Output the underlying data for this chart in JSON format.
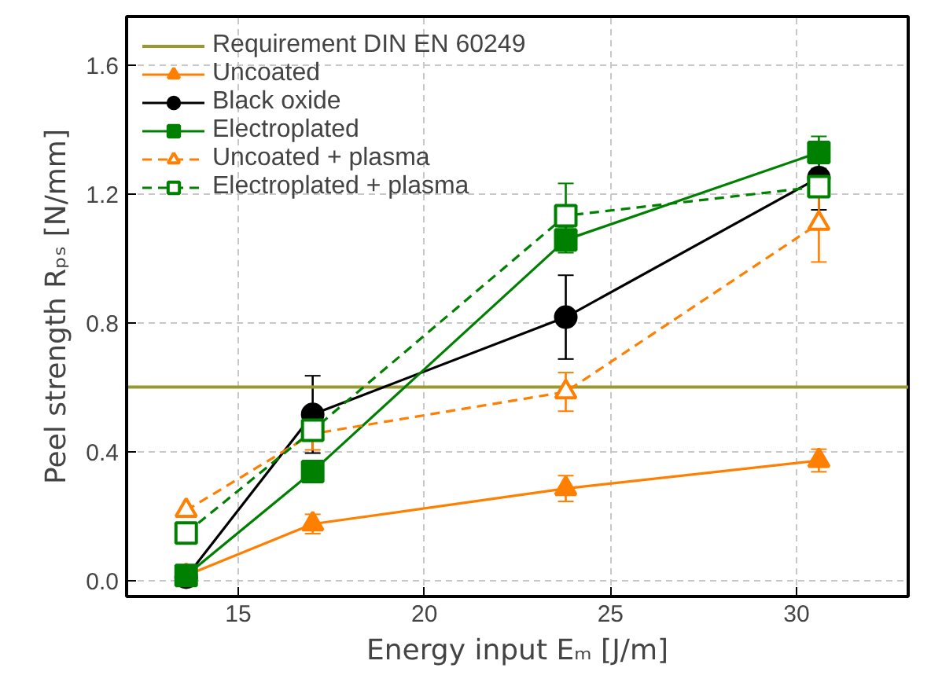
{
  "chart_data": {
    "type": "line",
    "xlabel": "Energy input Eₘ [J/m]",
    "ylabel": "Peel strength Rₚₛ [N/mm]",
    "x": [
      13.6,
      17.0,
      23.8,
      30.6
    ],
    "xlim": [
      12,
      33
    ],
    "ylim": [
      -0.05,
      1.75
    ],
    "xticks": [
      15,
      20,
      25,
      30
    ],
    "yticks": [
      {
        "value": 0,
        "label": "0.0"
      },
      0.4,
      0.8,
      1.2,
      1.6
    ],
    "grid": true,
    "legend": "top left",
    "ref_lines": [
      {
        "axis": "y",
        "value": 0.6,
        "label": "Requirement DIN EN 60249",
        "color": "#999933"
      }
    ],
    "series": [
      {
        "name": "Uncoated",
        "color": "#ff7f00",
        "marker": "triangle",
        "line_style": "solid",
        "values": [
          0.015,
          0.175,
          0.285,
          0.372
        ],
        "errors": [
          null,
          0.03,
          0.04,
          0.035
        ]
      },
      {
        "name": "Black oxide",
        "color": "#000000",
        "marker": "circle",
        "line_style": "solid",
        "values": [
          0.01,
          0.515,
          0.817,
          1.25
        ],
        "errors": [
          null,
          0.12,
          0.13,
          0.1
        ]
      },
      {
        "name": "Electroplated",
        "color": "#008000",
        "marker": "square",
        "line_style": "solid",
        "values": [
          0.015,
          0.338,
          1.057,
          1.328
        ],
        "errors": [
          null,
          null,
          0.04,
          0.05
        ]
      },
      {
        "name": "Uncoated + plasma",
        "color": "#ff7f00",
        "marker": "triangle_open",
        "line_style": "dashed",
        "values": [
          0.217,
          0.455,
          0.585,
          1.108
        ],
        "errors": [
          null,
          0.05,
          0.06,
          0.12
        ]
      },
      {
        "name": "Electroplated + plasma",
        "color": "#008000",
        "marker": "square_open",
        "line_style": "dashed",
        "values": [
          0.147,
          0.466,
          1.132,
          1.222
        ],
        "errors": [
          null,
          null,
          0.1,
          null
        ]
      }
    ]
  }
}
